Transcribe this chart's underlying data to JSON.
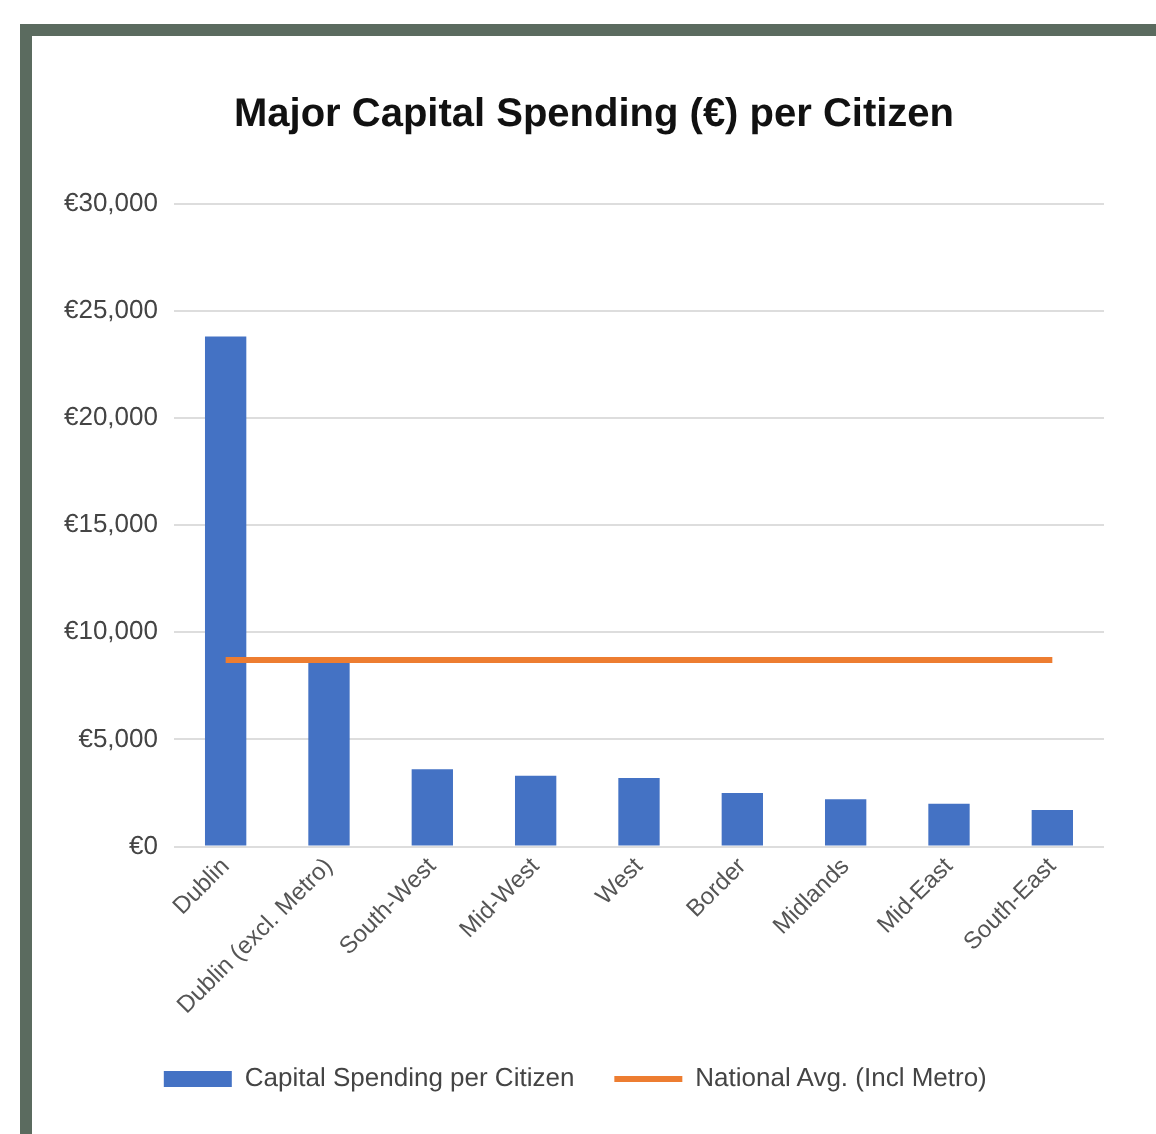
{
  "chart_data": {
    "type": "bar",
    "title": "Major Capital Spending (€) per Citizen",
    "categories": [
      "Dublin",
      "Dublin (excl. Metro)",
      "South-West",
      "Mid-West",
      "West",
      "Border",
      "Midlands",
      "Mid-East",
      "South-East"
    ],
    "series": [
      {
        "name": "Capital Spending per Citizen",
        "color": "#4472c4",
        "values": [
          23800,
          8600,
          3600,
          3300,
          3200,
          2500,
          2200,
          2000,
          1700
        ]
      },
      {
        "name": "National Avg. (Incl Metro)",
        "type": "line",
        "color": "#ed7d31",
        "values": [
          8700,
          8700,
          8700,
          8700,
          8700,
          8700,
          8700,
          8700,
          8700
        ]
      }
    ],
    "ylim": [
      0,
      30000
    ],
    "yticks": [
      {
        "value": 0,
        "label": "€0"
      },
      {
        "value": 5000,
        "label": "€5,000"
      },
      {
        "value": 10000,
        "label": "€10,000"
      },
      {
        "value": 15000,
        "label": "€15,000"
      },
      {
        "value": 20000,
        "label": "€20,000"
      },
      {
        "value": 25000,
        "label": "€25,000"
      },
      {
        "value": 30000,
        "label": "€30,000"
      }
    ],
    "grid": "y",
    "legend": "bottom",
    "marker": "none",
    "line_style": "solid"
  }
}
